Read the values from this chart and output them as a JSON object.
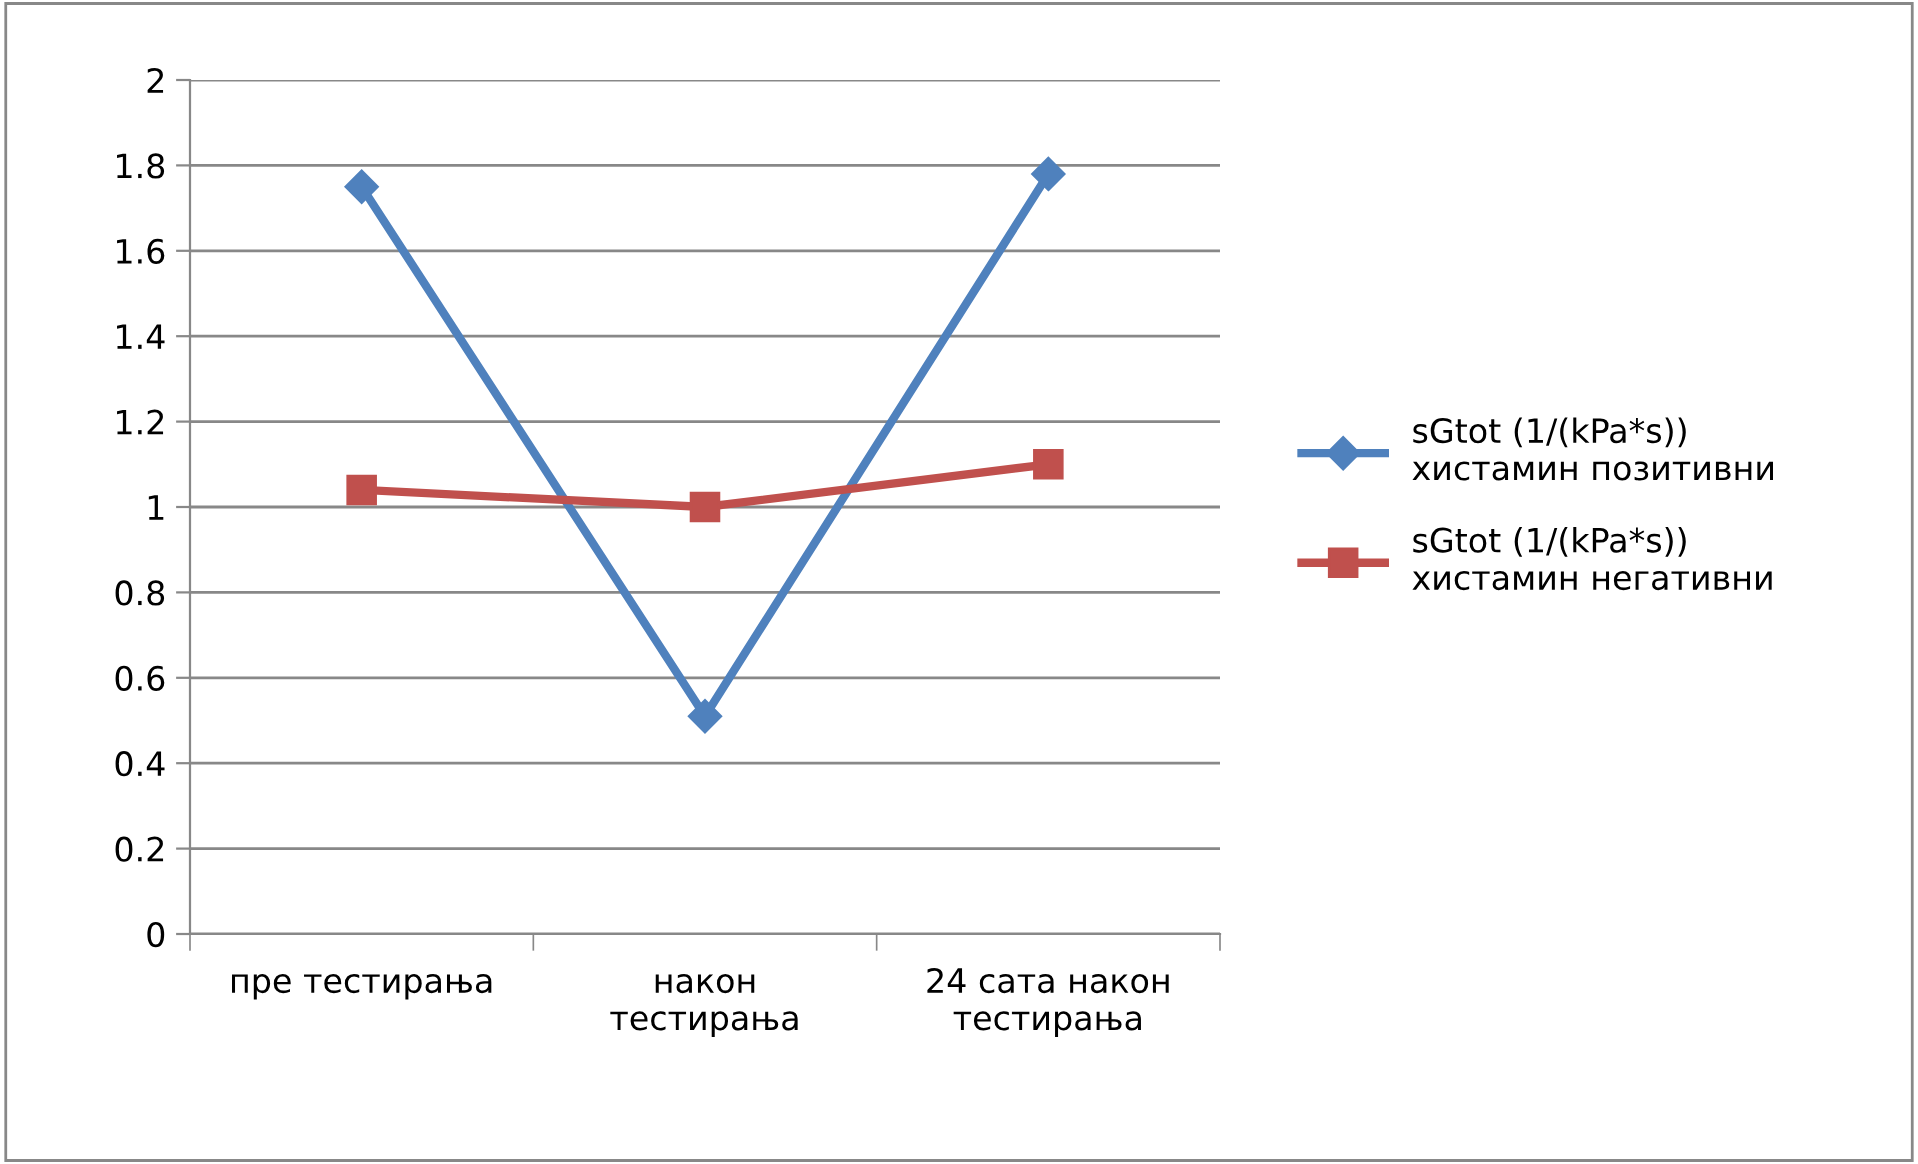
{
  "chart_data": {
    "type": "line",
    "categories": [
      "пре тестирања",
      "након\nтестирања",
      "24 сата након\nтестирања"
    ],
    "series": [
      {
        "name": "sGtot (1/(kPa*s))\nхистамин позитивни",
        "color": "#4f81bd",
        "values": [
          1.75,
          0.51,
          1.78
        ],
        "marker": "diamond"
      },
      {
        "name": "sGtot (1/(kPa*s))\nхистамин негативни",
        "color": "#c0504d",
        "values": [
          1.04,
          1.0,
          1.1
        ],
        "marker": "square"
      }
    ],
    "ylim": [
      0,
      2
    ],
    "yticks": [
      0,
      0.2,
      0.4,
      0.6,
      0.8,
      1,
      1.2,
      1.4,
      1.6,
      1.8,
      2
    ],
    "grid": "y",
    "legend": "right"
  }
}
